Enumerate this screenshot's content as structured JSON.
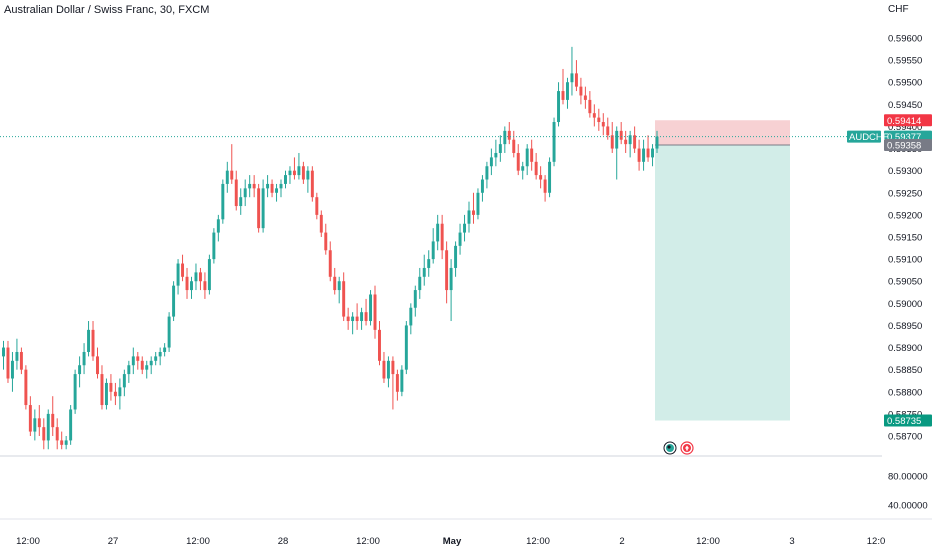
{
  "title": "Australian Dollar / Swiss Franc, 30, FXCM",
  "price_axis": {
    "currency": "CHF",
    "ticks": [
      "0.59600",
      "0.59550",
      "0.59500",
      "0.59450",
      "0.59400",
      "0.59350",
      "0.59300",
      "0.59250",
      "0.59200",
      "0.59150",
      "0.59100",
      "0.59050",
      "0.59000",
      "0.58950",
      "0.58900",
      "0.58850",
      "0.58800",
      "0.58750",
      "0.58700"
    ]
  },
  "indicator_axis": {
    "ticks": [
      "80.00000",
      "40.00000"
    ]
  },
  "time_axis": {
    "labels": [
      "12:00",
      "27",
      "12:00",
      "28",
      "12:00",
      "May",
      "12:00",
      "2",
      "12:00",
      "3",
      "12:0"
    ]
  },
  "tags": {
    "stop_loss": "0.59414",
    "symbol": "AUDCHF",
    "last_price": "0.59377",
    "entry": "0.59358",
    "take_profit": "0.58735"
  },
  "colors": {
    "up": "#26a69a",
    "down": "#ef5350",
    "stop_zone": "#f6c9cb",
    "target_zone": "#cdebe5",
    "stop_tag": "#f23645",
    "target_tag": "#089981",
    "entry_tag": "#787b86",
    "axis_text": "#131722"
  },
  "icons": [
    "earnings-icon",
    "dividend-icon"
  ],
  "chart_data": {
    "type": "candlestick",
    "timeframe": "30",
    "symbol": "AUDCHF",
    "ohlc": [
      [
        0.5888,
        0.58915,
        0.5885,
        0.589
      ],
      [
        0.589,
        0.58915,
        0.5882,
        0.5883
      ],
      [
        0.5883,
        0.5889,
        0.588,
        0.5887
      ],
      [
        0.5887,
        0.5892,
        0.5885,
        0.5889
      ],
      [
        0.5889,
        0.589,
        0.5884,
        0.5885
      ],
      [
        0.5885,
        0.5886,
        0.5876,
        0.5877
      ],
      [
        0.5877,
        0.5879,
        0.587,
        0.5871
      ],
      [
        0.5871,
        0.5876,
        0.5869,
        0.5874
      ],
      [
        0.5874,
        0.5877,
        0.587,
        0.5872
      ],
      [
        0.5872,
        0.5874,
        0.5867,
        0.5869
      ],
      [
        0.5869,
        0.5876,
        0.5867,
        0.5875
      ],
      [
        0.5875,
        0.5879,
        0.587,
        0.5872
      ],
      [
        0.5872,
        0.5874,
        0.5867,
        0.5869
      ],
      [
        0.5869,
        0.5871,
        0.5867,
        0.5868
      ],
      [
        0.5868,
        0.587,
        0.5867,
        0.5869
      ],
      [
        0.5869,
        0.5877,
        0.5868,
        0.5876
      ],
      [
        0.5876,
        0.5885,
        0.5875,
        0.5884
      ],
      [
        0.5884,
        0.5888,
        0.5881,
        0.5886
      ],
      [
        0.5886,
        0.5891,
        0.5884,
        0.5889
      ],
      [
        0.5889,
        0.5896,
        0.5888,
        0.5894
      ],
      [
        0.5894,
        0.5896,
        0.5887,
        0.5888
      ],
      [
        0.5888,
        0.589,
        0.5883,
        0.5884
      ],
      [
        0.5884,
        0.5886,
        0.5876,
        0.5877
      ],
      [
        0.5877,
        0.5883,
        0.5876,
        0.5882
      ],
      [
        0.5882,
        0.5884,
        0.5878,
        0.588
      ],
      [
        0.588,
        0.5882,
        0.5877,
        0.5879
      ],
      [
        0.5879,
        0.5883,
        0.5876,
        0.5881
      ],
      [
        0.5881,
        0.5885,
        0.5879,
        0.5884
      ],
      [
        0.5884,
        0.5887,
        0.5882,
        0.5886
      ],
      [
        0.5886,
        0.589,
        0.5884,
        0.5888
      ],
      [
        0.5888,
        0.5889,
        0.5885,
        0.5887
      ],
      [
        0.5887,
        0.5888,
        0.5884,
        0.5885
      ],
      [
        0.5885,
        0.5887,
        0.5883,
        0.5886
      ],
      [
        0.5886,
        0.5888,
        0.5884,
        0.5887
      ],
      [
        0.5887,
        0.5889,
        0.5886,
        0.5888
      ],
      [
        0.5888,
        0.589,
        0.5886,
        0.5889
      ],
      [
        0.5889,
        0.5891,
        0.5888,
        0.589
      ],
      [
        0.589,
        0.5898,
        0.5889,
        0.5897
      ],
      [
        0.5897,
        0.5905,
        0.5896,
        0.5904
      ],
      [
        0.5904,
        0.591,
        0.5902,
        0.5909
      ],
      [
        0.5909,
        0.5911,
        0.5905,
        0.5906
      ],
      [
        0.5906,
        0.5908,
        0.5901,
        0.5903
      ],
      [
        0.5903,
        0.5906,
        0.5901,
        0.5905
      ],
      [
        0.5905,
        0.5909,
        0.5903,
        0.5907
      ],
      [
        0.5907,
        0.5908,
        0.5903,
        0.5905
      ],
      [
        0.5905,
        0.5907,
        0.5901,
        0.5903
      ],
      [
        0.5903,
        0.5911,
        0.5902,
        0.591
      ],
      [
        0.591,
        0.5917,
        0.5909,
        0.5916
      ],
      [
        0.5916,
        0.592,
        0.5914,
        0.5919
      ],
      [
        0.5919,
        0.5928,
        0.5918,
        0.5927
      ],
      [
        0.5927,
        0.5932,
        0.5925,
        0.593
      ],
      [
        0.593,
        0.5936,
        0.5927,
        0.5928
      ],
      [
        0.5928,
        0.593,
        0.5921,
        0.5922
      ],
      [
        0.5922,
        0.5926,
        0.592,
        0.5924
      ],
      [
        0.5924,
        0.5928,
        0.5922,
        0.5926
      ],
      [
        0.5926,
        0.5929,
        0.5924,
        0.5927
      ],
      [
        0.5927,
        0.5929,
        0.5924,
        0.5926
      ],
      [
        0.5926,
        0.5927,
        0.5916,
        0.5917
      ],
      [
        0.5917,
        0.5928,
        0.5916,
        0.5926
      ],
      [
        0.5926,
        0.5929,
        0.5924,
        0.5927
      ],
      [
        0.5927,
        0.5928,
        0.5924,
        0.5925
      ],
      [
        0.5925,
        0.5927,
        0.5923,
        0.5926
      ],
      [
        0.5926,
        0.5928,
        0.5924,
        0.5927
      ],
      [
        0.5927,
        0.593,
        0.5926,
        0.5929
      ],
      [
        0.5929,
        0.5931,
        0.5927,
        0.593
      ],
      [
        0.593,
        0.5933,
        0.5928,
        0.5929
      ],
      [
        0.5929,
        0.5934,
        0.5928,
        0.5931
      ],
      [
        0.5931,
        0.5932,
        0.5927,
        0.5928
      ],
      [
        0.5928,
        0.5931,
        0.5925,
        0.593
      ],
      [
        0.593,
        0.5931,
        0.5923,
        0.5924
      ],
      [
        0.5924,
        0.5925,
        0.5919,
        0.592
      ],
      [
        0.592,
        0.5921,
        0.5915,
        0.5916
      ],
      [
        0.5916,
        0.5918,
        0.5911,
        0.5912
      ],
      [
        0.5912,
        0.5914,
        0.5905,
        0.5906
      ],
      [
        0.5906,
        0.5908,
        0.5902,
        0.5903
      ],
      [
        0.5903,
        0.5906,
        0.59,
        0.5905
      ],
      [
        0.5905,
        0.5907,
        0.5896,
        0.5897
      ],
      [
        0.5897,
        0.5899,
        0.5894,
        0.5896
      ],
      [
        0.5896,
        0.5898,
        0.5893,
        0.5897
      ],
      [
        0.5897,
        0.59,
        0.5894,
        0.5896
      ],
      [
        0.5896,
        0.5899,
        0.5894,
        0.5898
      ],
      [
        0.5898,
        0.5901,
        0.5895,
        0.5896
      ],
      [
        0.5896,
        0.5903,
        0.5895,
        0.5902
      ],
      [
        0.5902,
        0.5904,
        0.5892,
        0.5894
      ],
      [
        0.5894,
        0.5896,
        0.5886,
        0.5887
      ],
      [
        0.5887,
        0.5889,
        0.5882,
        0.5883
      ],
      [
        0.5883,
        0.5888,
        0.5881,
        0.5887
      ],
      [
        0.5887,
        0.5888,
        0.5876,
        0.5884
      ],
      [
        0.5884,
        0.5885,
        0.5878,
        0.588
      ],
      [
        0.588,
        0.5886,
        0.5879,
        0.5885
      ],
      [
        0.5885,
        0.5896,
        0.5884,
        0.5895
      ],
      [
        0.5895,
        0.59,
        0.5893,
        0.5899
      ],
      [
        0.5899,
        0.5904,
        0.5897,
        0.5903
      ],
      [
        0.5903,
        0.5908,
        0.5901,
        0.5906
      ],
      [
        0.5906,
        0.5911,
        0.5904,
        0.5908
      ],
      [
        0.5908,
        0.5912,
        0.5906,
        0.591
      ],
      [
        0.591,
        0.5917,
        0.5909,
        0.5914
      ],
      [
        0.5914,
        0.592,
        0.5912,
        0.5918
      ],
      [
        0.5918,
        0.592,
        0.591,
        0.5912
      ],
      [
        0.5912,
        0.5914,
        0.59,
        0.5903
      ],
      [
        0.5903,
        0.591,
        0.5896,
        0.5908
      ],
      [
        0.5908,
        0.5914,
        0.5906,
        0.5913
      ],
      [
        0.5913,
        0.5918,
        0.5911,
        0.5916
      ],
      [
        0.5916,
        0.592,
        0.5914,
        0.5918
      ],
      [
        0.5918,
        0.5923,
        0.5916,
        0.5921
      ],
      [
        0.5921,
        0.5925,
        0.5918,
        0.592
      ],
      [
        0.592,
        0.5926,
        0.5919,
        0.5925
      ],
      [
        0.5925,
        0.5929,
        0.5923,
        0.5928
      ],
      [
        0.5928,
        0.5932,
        0.5926,
        0.5931
      ],
      [
        0.5931,
        0.5935,
        0.5929,
        0.5933
      ],
      [
        0.5933,
        0.5937,
        0.5931,
        0.5934
      ],
      [
        0.5934,
        0.5938,
        0.5932,
        0.5936
      ],
      [
        0.5936,
        0.594,
        0.5934,
        0.5939
      ],
      [
        0.5939,
        0.5941,
        0.5936,
        0.5937
      ],
      [
        0.5937,
        0.5939,
        0.5933,
        0.5934
      ],
      [
        0.5934,
        0.5936,
        0.5929,
        0.593
      ],
      [
        0.593,
        0.5932,
        0.5928,
        0.5931
      ],
      [
        0.5931,
        0.5936,
        0.5929,
        0.5935
      ],
      [
        0.5935,
        0.5937,
        0.593,
        0.5932
      ],
      [
        0.5932,
        0.5934,
        0.5928,
        0.5929
      ],
      [
        0.5929,
        0.5931,
        0.5926,
        0.5928
      ],
      [
        0.5928,
        0.5929,
        0.5923,
        0.5925
      ],
      [
        0.5925,
        0.5933,
        0.5924,
        0.5932
      ],
      [
        0.5932,
        0.5942,
        0.5931,
        0.5941
      ],
      [
        0.5941,
        0.595,
        0.594,
        0.5948
      ],
      [
        0.5948,
        0.5953,
        0.5945,
        0.5946
      ],
      [
        0.5946,
        0.5951,
        0.5944,
        0.595
      ],
      [
        0.595,
        0.5958,
        0.5947,
        0.5952
      ],
      [
        0.5952,
        0.5955,
        0.5948,
        0.5949
      ],
      [
        0.5949,
        0.5951,
        0.5945,
        0.5947
      ],
      [
        0.5947,
        0.5949,
        0.5944,
        0.5946
      ],
      [
        0.5946,
        0.5948,
        0.5942,
        0.5943
      ],
      [
        0.5943,
        0.5945,
        0.594,
        0.5942
      ],
      [
        0.5942,
        0.5944,
        0.5939,
        0.5941
      ],
      [
        0.5941,
        0.5943,
        0.5938,
        0.594
      ],
      [
        0.594,
        0.5942,
        0.5937,
        0.5938
      ],
      [
        0.5938,
        0.5941,
        0.5934,
        0.5935
      ],
      [
        0.5935,
        0.594,
        0.5928,
        0.5939
      ],
      [
        0.5939,
        0.5941,
        0.5936,
        0.5937
      ],
      [
        0.5937,
        0.5939,
        0.5934,
        0.5936
      ],
      [
        0.5936,
        0.5939,
        0.5933,
        0.5938
      ],
      [
        0.5938,
        0.594,
        0.5934,
        0.5935
      ],
      [
        0.5935,
        0.5937,
        0.593,
        0.5932
      ],
      [
        0.5932,
        0.5937,
        0.593,
        0.5935
      ],
      [
        0.5935,
        0.5938,
        0.5932,
        0.5933
      ],
      [
        0.5933,
        0.5936,
        0.5931,
        0.5935
      ],
      [
        0.5935,
        0.5939,
        0.5934,
        0.59377
      ]
    ],
    "position": {
      "side": "short",
      "entry": 0.59358,
      "stop_loss": 0.59414,
      "take_profit": 0.58735
    },
    "y_axis": {
      "range": [
        0.58675,
        0.5964
      ],
      "side": "right"
    },
    "x_axis_labels": [
      "12:00",
      "27",
      "12:00",
      "28",
      "12:00",
      "May",
      "12:00",
      "2",
      "12:00",
      "3",
      "12:0"
    ],
    "grid": true
  }
}
